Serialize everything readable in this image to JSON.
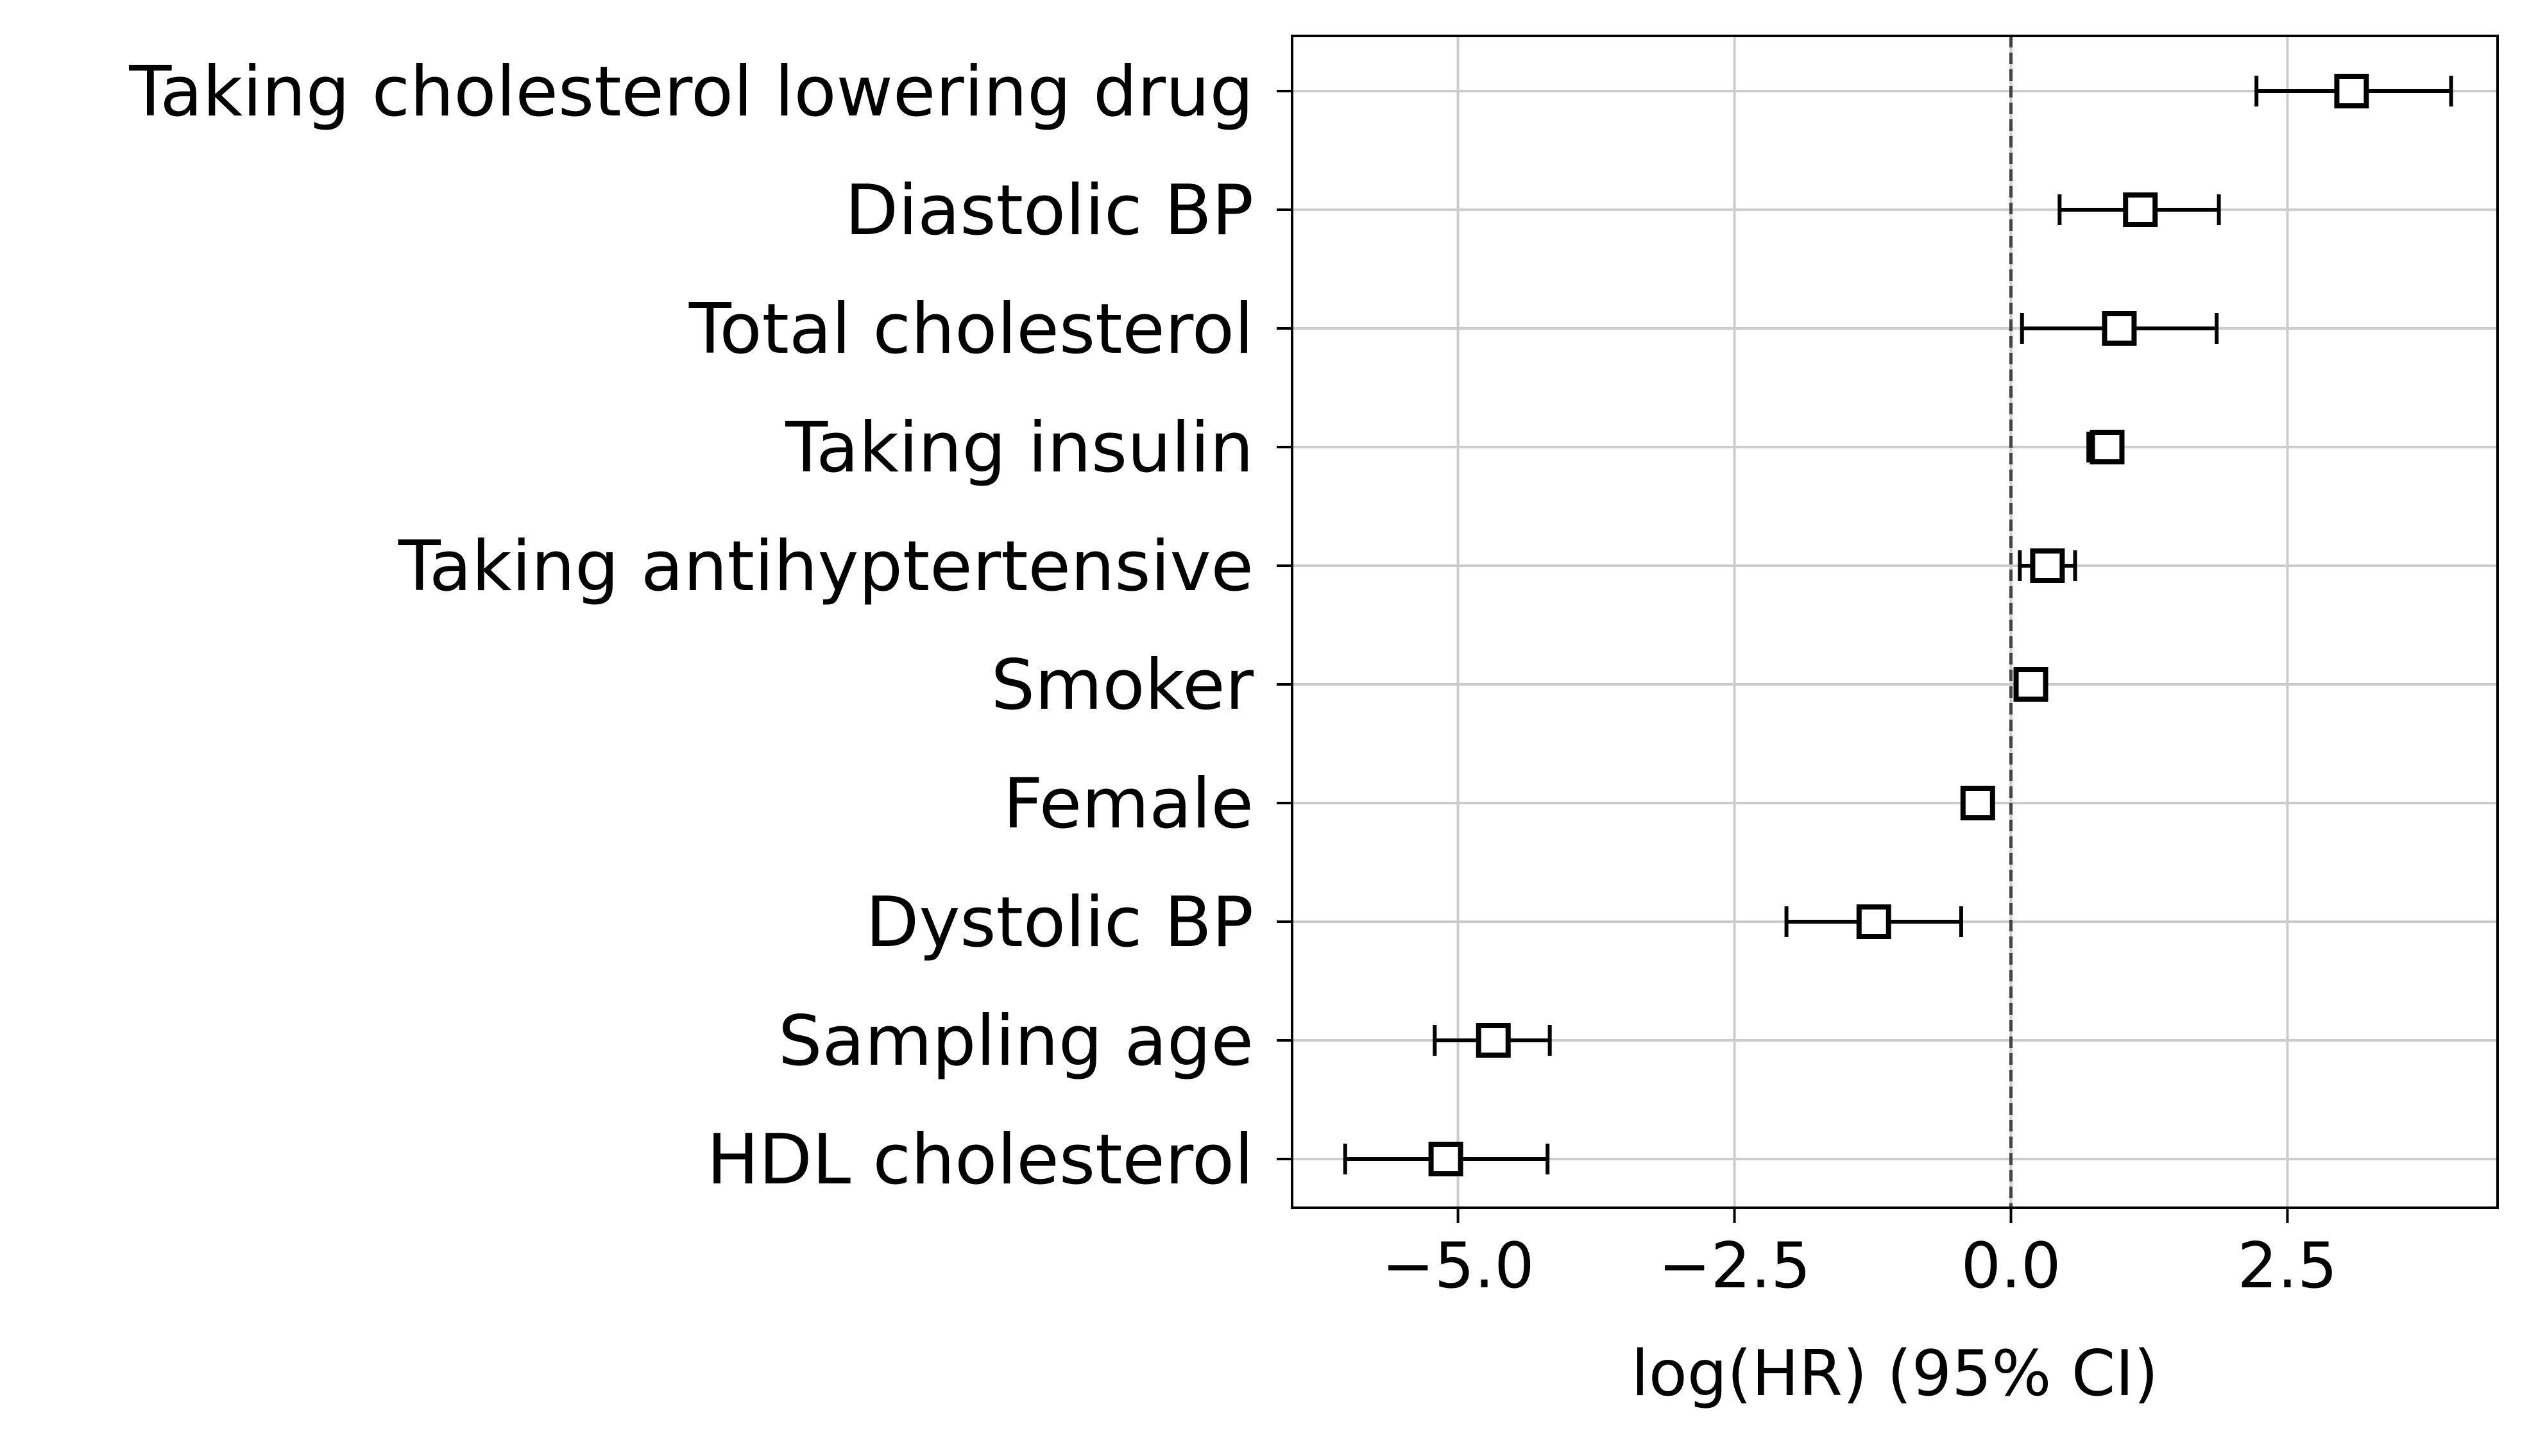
{
  "chart_data": {
    "type": "forest",
    "title": "",
    "xlabel": "log(HR) (95% CI)",
    "ylabel": "",
    "xlim": [
      -6.5,
      4.4
    ],
    "xticks": [
      -5.0,
      -2.5,
      0.0,
      2.5
    ],
    "xtick_labels": [
      "−5.0",
      "−2.5",
      "0.0",
      "2.5"
    ],
    "grid": true,
    "reference_line": {
      "x": 0.0,
      "style": "dashed",
      "color": "#444444"
    },
    "marker": "open-square",
    "categories": [
      "Taking cholesterol lowering drug",
      "Diastolic BP",
      "Total cholesterol",
      "Taking insulin",
      "Taking antihyptertensive",
      "Smoker",
      "Female",
      "Dystolic BP",
      "Sampling age",
      "HDL cholesterol"
    ],
    "estimates": [
      3.08,
      1.17,
      0.98,
      0.87,
      0.33,
      0.18,
      -0.3,
      -1.24,
      -4.68,
      -5.11
    ],
    "ci_lower": [
      2.22,
      0.44,
      0.1,
      0.7,
      0.08,
      0.08,
      -0.42,
      -2.03,
      -5.21,
      -6.02
    ],
    "ci_upper": [
      3.98,
      1.88,
      1.86,
      0.98,
      0.58,
      0.22,
      -0.2,
      -0.45,
      -4.17,
      -4.19
    ],
    "colors": {
      "marker": "#000000",
      "grid": "#cccccc",
      "spine": "#000000"
    }
  }
}
